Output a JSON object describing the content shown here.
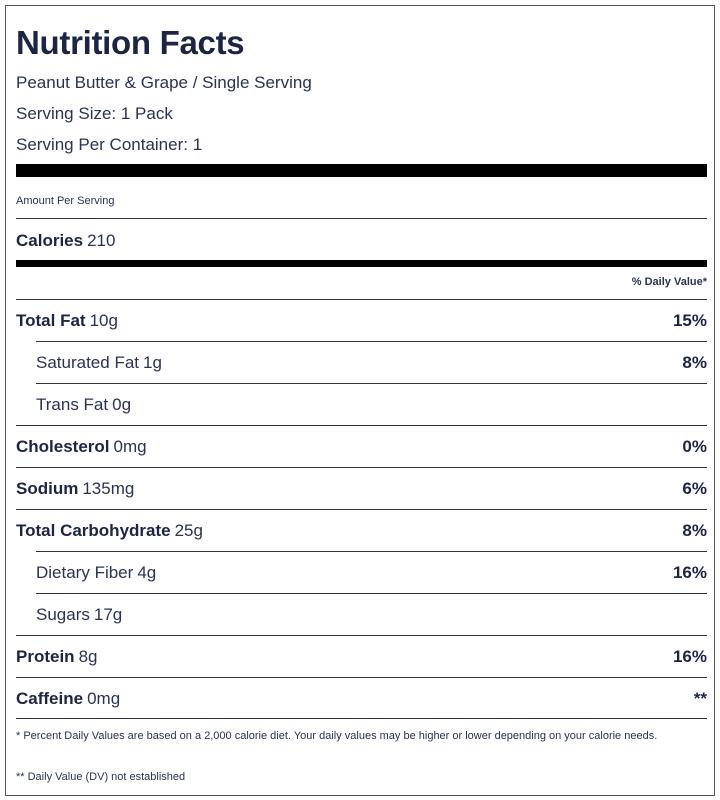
{
  "title": "Nutrition Facts",
  "product": "Peanut Butter & Grape / Single Serving",
  "serving_size": "Serving Size: 1 Pack",
  "servings_per_container": "Serving Per Container: 1",
  "amount_per_serving": "Amount Per Serving",
  "calories": {
    "label": "Calories",
    "value": "210"
  },
  "daily_value_header": "% Daily Value*",
  "nutrients": [
    {
      "name": "Total Fat",
      "amount": "10g",
      "dv": "15%",
      "indent": false
    },
    {
      "name": "Saturated Fat",
      "amount": "1g",
      "dv": "8%",
      "indent": true
    },
    {
      "name": "Trans Fat",
      "amount": "0g",
      "dv": "",
      "indent": true
    },
    {
      "name": "Cholesterol",
      "amount": "0mg",
      "dv": "0%",
      "indent": false
    },
    {
      "name": "Sodium",
      "amount": "135mg",
      "dv": "6%",
      "indent": false
    },
    {
      "name": "Total Carbohydrate",
      "amount": "25g",
      "dv": "8%",
      "indent": false
    },
    {
      "name": "Dietary Fiber",
      "amount": "4g",
      "dv": "16%",
      "indent": true
    },
    {
      "name": "Sugars",
      "amount": "17g",
      "dv": "",
      "indent": true
    },
    {
      "name": "Protein",
      "amount": "8g",
      "dv": "16%",
      "indent": false
    },
    {
      "name": "Caffeine",
      "amount": "0mg",
      "dv": "**",
      "indent": false
    }
  ],
  "footnotes": [
    "* Percent Daily Values are based on a 2,000 calorie diet. Your daily values may be higher or lower depending on your calorie needs.",
    "** Daily Value (DV) not established"
  ]
}
